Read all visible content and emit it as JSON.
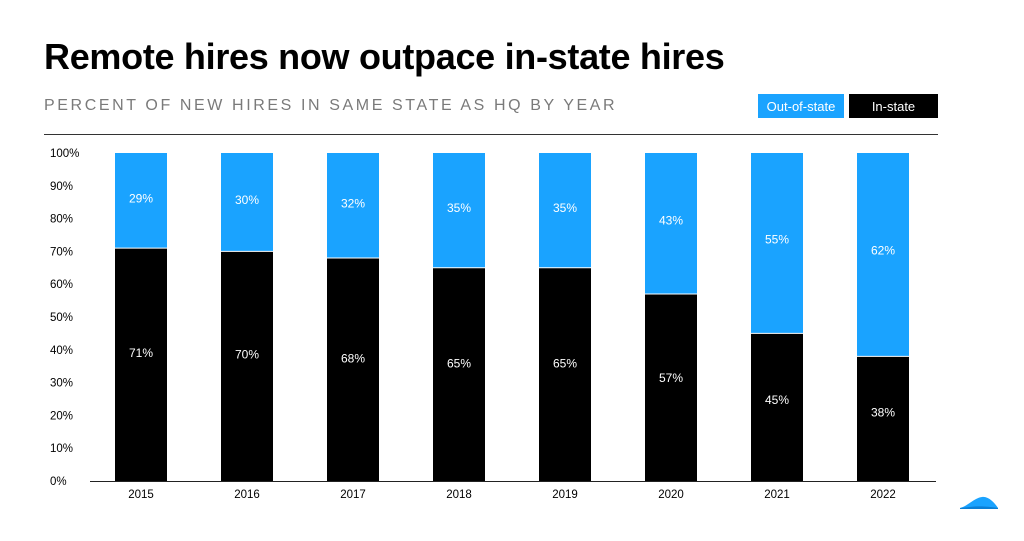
{
  "colors": {
    "out_of_state": "#1aa3ff",
    "in_state": "#000000"
  },
  "chart_data": {
    "type": "bar",
    "stacked": true,
    "title": "Remote hires now outpace in-state hires",
    "subtitle": "PERCENT OF NEW HIRES IN SAME STATE AS HQ BY YEAR",
    "categories": [
      "2015",
      "2016",
      "2017",
      "2018",
      "2019",
      "2020",
      "2021",
      "2022"
    ],
    "series": [
      {
        "name": "In-state",
        "values": [
          71,
          70,
          68,
          65,
          65,
          57,
          45,
          38
        ]
      },
      {
        "name": "Out-of-state",
        "values": [
          29,
          30,
          32,
          35,
          35,
          43,
          55,
          62
        ]
      }
    ],
    "ylim": [
      0,
      100
    ],
    "yticks": [
      "0%",
      "10%",
      "20%",
      "30%",
      "40%",
      "50%",
      "60%",
      "70%",
      "80%",
      "90%",
      "100%"
    ],
    "xlabel": "",
    "ylabel": "",
    "legend": {
      "items": [
        "Out-of-state",
        "In-state"
      ],
      "position": "top-right"
    }
  }
}
